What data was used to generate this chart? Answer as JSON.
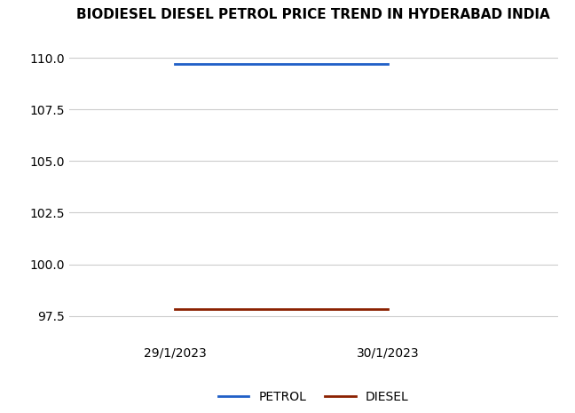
{
  "title": "BIODIESEL DIESEL PETROL PRICE TREND IN HYDERABAD INDIA",
  "x_labels": [
    "29/1/2023",
    "30/1/2023"
  ],
  "petrol_values": [
    109.7,
    109.7
  ],
  "diesel_values": [
    97.82,
    97.82
  ],
  "petrol_color": "#1f5fc7",
  "diesel_color": "#8b2000",
  "ylim": [
    96.2,
    111.2
  ],
  "yticks": [
    97.5,
    100.0,
    102.5,
    105.0,
    107.5,
    110.0
  ],
  "legend_labels": [
    "PETROL",
    "DIESEL"
  ],
  "title_fontsize": 11,
  "tick_fontsize": 10,
  "legend_fontsize": 10,
  "line_width": 2.0,
  "background_color": "#ffffff",
  "grid_color": "#cccccc"
}
